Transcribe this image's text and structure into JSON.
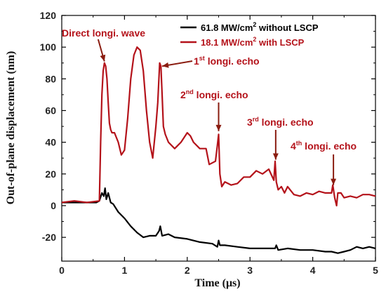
{
  "chart_data": {
    "type": "line",
    "xlabel": "Time (μs)",
    "ylabel": "Out-of-plane displacement (nm)",
    "xlim": [
      0,
      5
    ],
    "ylim": [
      -35,
      120
    ],
    "x_ticks": [
      0,
      1,
      2,
      3,
      4,
      5
    ],
    "y_ticks": [
      -20,
      0,
      20,
      40,
      60,
      80,
      100,
      120
    ],
    "x_tick_labels": [
      "0",
      "1",
      "2",
      "3",
      "4",
      "5"
    ],
    "y_tick_labels": [
      "-20",
      "0",
      "20",
      "40",
      "60",
      "80",
      "100",
      "120"
    ],
    "legend_position": "top-right",
    "colors": {
      "black": "#000000",
      "red": "#b4121a",
      "arrow": "#8a1c10"
    },
    "series": [
      {
        "name": "61.8 MW/cm² without LSCP",
        "legend_main": "61.8 MW/cm",
        "legend_sup": "2",
        "legend_tail": " without LSCP",
        "color": "#000000",
        "x": [
          0,
          0.3,
          0.55,
          0.6,
          0.64,
          0.67,
          0.69,
          0.71,
          0.74,
          0.78,
          0.82,
          0.9,
          1.0,
          1.1,
          1.2,
          1.3,
          1.4,
          1.5,
          1.55,
          1.57,
          1.6,
          1.7,
          1.8,
          2.0,
          2.2,
          2.4,
          2.48,
          2.5,
          2.52,
          2.6,
          2.8,
          3.0,
          3.2,
          3.4,
          3.42,
          3.45,
          3.6,
          3.8,
          4.0,
          4.2,
          4.3,
          4.4,
          4.5,
          4.6,
          4.7,
          4.8,
          4.9,
          5.0
        ],
        "y": [
          2,
          2,
          2,
          3,
          8,
          6,
          11,
          4,
          8,
          2,
          1,
          -4,
          -8,
          -13,
          -17,
          -20,
          -19,
          -19,
          -16,
          -13,
          -19,
          -18,
          -20,
          -21,
          -23,
          -24,
          -26,
          -22,
          -25,
          -25,
          -26,
          -27,
          -27,
          -27,
          -25,
          -28,
          -27,
          -28,
          -28,
          -29,
          -29,
          -30,
          -29,
          -28,
          -26,
          -27,
          -26,
          -27
        ]
      },
      {
        "name": "18.1 MW/cm² with LSCP",
        "legend_main": "18.1 MW/cm",
        "legend_sup": "2",
        "legend_tail": " with LSCP",
        "color": "#b4121a",
        "x": [
          0,
          0.2,
          0.4,
          0.6,
          0.62,
          0.64,
          0.66,
          0.68,
          0.7,
          0.72,
          0.74,
          0.76,
          0.78,
          0.8,
          0.84,
          0.9,
          0.95,
          1.0,
          1.05,
          1.1,
          1.15,
          1.2,
          1.25,
          1.3,
          1.35,
          1.4,
          1.45,
          1.5,
          1.53,
          1.56,
          1.58,
          1.6,
          1.62,
          1.65,
          1.7,
          1.8,
          1.9,
          2.0,
          2.05,
          2.1,
          2.2,
          2.3,
          2.35,
          2.45,
          2.48,
          2.5,
          2.52,
          2.55,
          2.6,
          2.7,
          2.8,
          2.9,
          3.0,
          3.1,
          3.2,
          3.3,
          3.38,
          3.4,
          3.42,
          3.45,
          3.5,
          3.55,
          3.6,
          3.7,
          3.8,
          3.9,
          4.0,
          4.1,
          4.2,
          4.3,
          4.32,
          4.35,
          4.38,
          4.4,
          4.45,
          4.5,
          4.6,
          4.7,
          4.8,
          4.9,
          5.0
        ],
        "y": [
          2,
          3,
          2,
          3,
          40,
          70,
          85,
          90,
          88,
          80,
          65,
          52,
          48,
          46,
          46,
          40,
          32,
          35,
          55,
          80,
          95,
          100,
          98,
          85,
          60,
          40,
          30,
          50,
          65,
          90,
          88,
          70,
          50,
          45,
          40,
          36,
          40,
          46,
          44,
          40,
          36,
          36,
          26,
          28,
          38,
          45,
          20,
          12,
          15,
          13,
          14,
          18,
          18,
          22,
          20,
          23,
          16,
          28,
          15,
          10,
          12,
          8,
          12,
          7,
          6,
          8,
          7,
          9,
          8,
          8,
          13,
          5,
          0,
          8,
          8,
          5,
          6,
          5,
          7,
          7,
          6
        ]
      }
    ],
    "annotations": [
      {
        "main": "Direct longi. wave",
        "sup": "",
        "tail": ""
      },
      {
        "main": "1",
        "sup": "st",
        "tail": " longi. echo"
      },
      {
        "main": "2",
        "sup": "nd",
        "tail": " longi. echo"
      },
      {
        "main": "3",
        "sup": "rd",
        "tail": " longi. echo"
      },
      {
        "main": "4",
        "sup": "th",
        "tail": " longi. echo"
      }
    ]
  }
}
